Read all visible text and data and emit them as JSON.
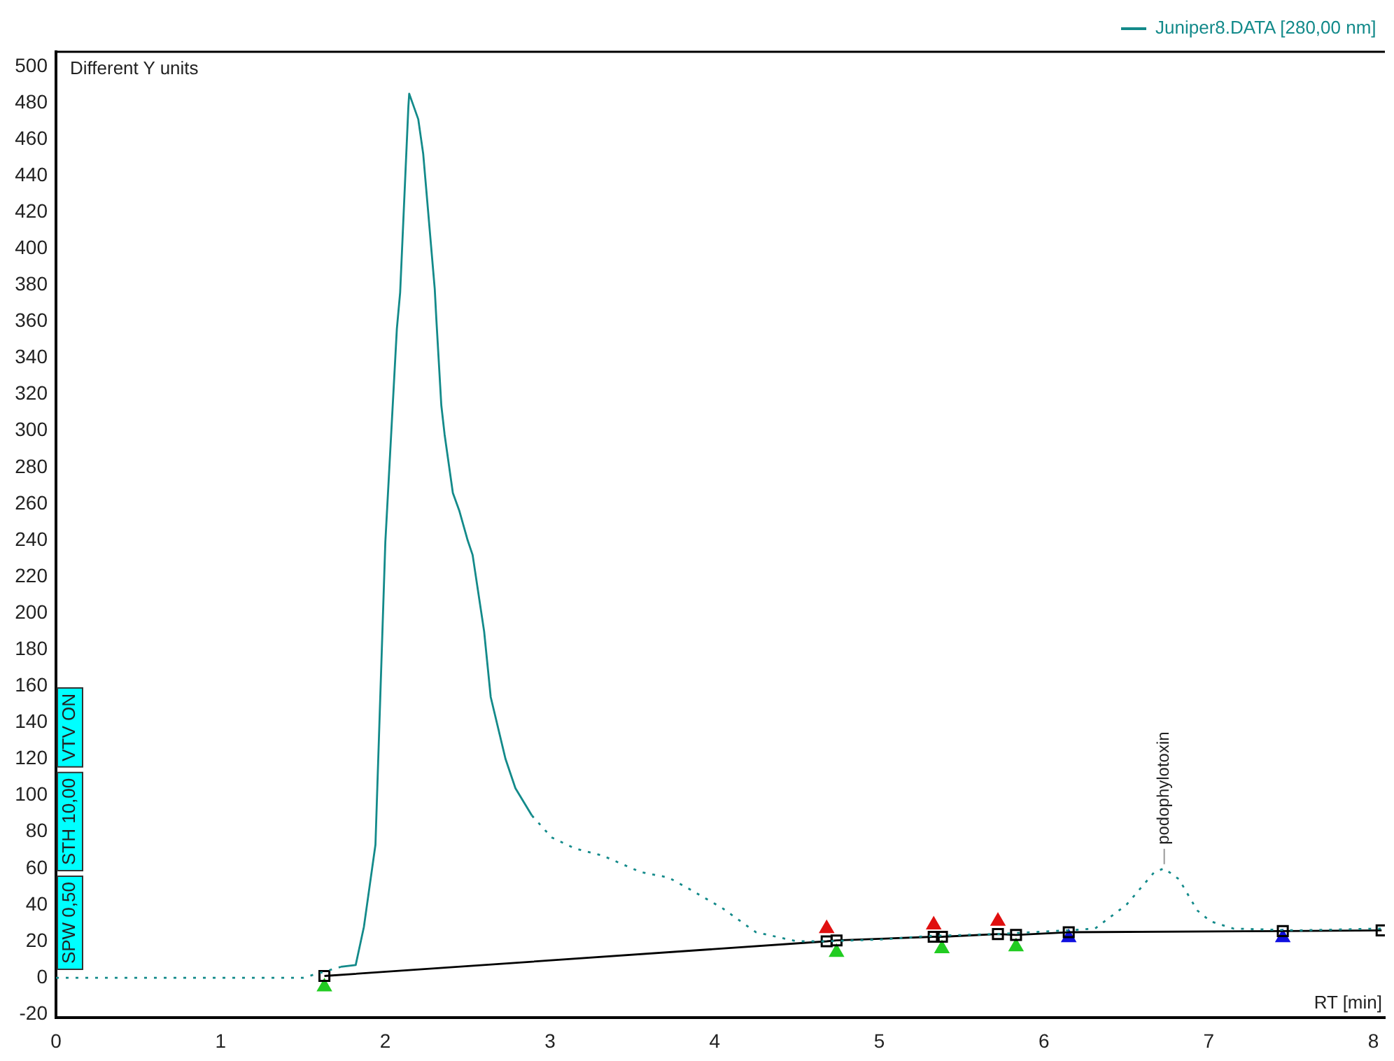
{
  "chart_data": {
    "type": "line",
    "xlabel": "RT [min]",
    "legend": "top right",
    "grid": false,
    "annotations": [
      "Different Y units",
      "SPW 0,50",
      "STH 10,00",
      "VTV ON",
      {
        "text": "podophylotoxin",
        "x": 6.73,
        "y": 60
      }
    ],
    "xlim": [
      0,
      8.07
    ],
    "xticks": [
      0,
      1,
      2,
      3,
      4,
      5,
      6,
      7,
      8
    ],
    "ylim": [
      -22,
      508
    ],
    "yticks": [
      -20,
      0,
      20,
      40,
      60,
      80,
      100,
      120,
      140,
      160,
      180,
      200,
      220,
      240,
      260,
      280,
      300,
      320,
      340,
      360,
      380,
      400,
      420,
      440,
      460,
      480,
      500
    ],
    "series": [
      {
        "name": "Juniper8.DATA [280,00 nm]",
        "color": "#138a8a",
        "line_style": "solid",
        "marker": "none",
        "x": [
          1.73,
          1.82,
          1.87,
          1.94,
          2.0,
          2.07,
          2.09,
          2.14,
          2.145,
          2.2,
          2.23,
          2.3,
          2.31,
          2.34,
          2.36,
          2.41,
          2.45,
          2.5,
          2.53,
          2.6,
          2.64,
          2.73,
          2.79,
          2.89
        ],
        "values": [
          6,
          7,
          28,
          73,
          239,
          356,
          376,
          478,
          485,
          471,
          452,
          378,
          361,
          314,
          298,
          266,
          256,
          240,
          232,
          190,
          154,
          120,
          104,
          89
        ]
      },
      {
        "color": "#138a8a",
        "line_style": "dotted",
        "marker": "none",
        "x": [
          0,
          0.5,
          1.0,
          1.5,
          1.73,
          2.3,
          2.89,
          3.01,
          3.15,
          3.32,
          3.55,
          3.72,
          3.86,
          4.05,
          4.25,
          4.5,
          4.67,
          5.01,
          5.32,
          5.72,
          6.14,
          6.31,
          6.5,
          6.67,
          6.73,
          6.82,
          6.93,
          7.01,
          7.15,
          7.54,
          8.05
        ],
        "values": [
          0,
          0,
          0,
          0,
          6,
          null,
          89,
          77,
          71,
          67,
          58,
          55,
          48,
          38,
          25,
          20,
          20,
          21,
          23,
          24,
          26,
          27,
          40,
          58,
          60,
          54,
          37,
          31,
          27,
          26,
          27
        ]
      },
      {
        "color": "#000000",
        "line_style": "solid",
        "marker": "square",
        "x": [
          1.63,
          4.68,
          4.74,
          5.33,
          5.38,
          5.72,
          5.83,
          6.15,
          7.45,
          8.05
        ],
        "values": [
          1,
          20,
          20.5,
          22.5,
          22.5,
          24,
          23.5,
          25,
          25.6,
          26
        ]
      },
      {
        "type": "scatter",
        "color": "#e01010",
        "marker": "triangle",
        "x": [
          4.68,
          5.33,
          5.72
        ],
        "values": [
          27,
          29,
          31
        ]
      },
      {
        "type": "scatter",
        "color": "#22cc22",
        "marker": "triangle",
        "x": [
          1.63,
          4.74,
          5.38,
          5.83
        ],
        "values": [
          -5,
          14,
          16,
          17
        ]
      },
      {
        "type": "scatter",
        "color": "#1010e0",
        "marker": "triangle",
        "x": [
          6.15,
          7.45
        ],
        "values": [
          22,
          22
        ]
      }
    ]
  }
}
